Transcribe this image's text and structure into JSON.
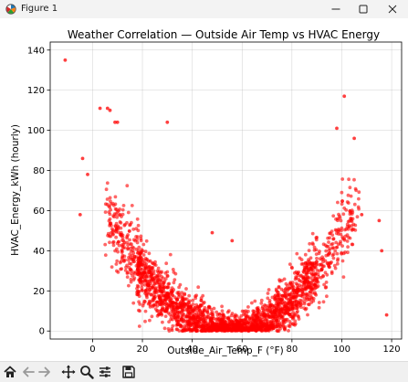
{
  "window": {
    "title": "Figure 1",
    "controls": [
      "minimize",
      "maximize",
      "close"
    ]
  },
  "toolbar": {
    "icons": [
      "home-icon",
      "back-arrow-icon",
      "forward-arrow-icon",
      "pan-icon",
      "zoom-icon",
      "configure-subplots-icon",
      "save-icon"
    ]
  },
  "chart_data": {
    "type": "scatter",
    "title": "Weather Correlation — Outside Air Temp vs HVAC Energy",
    "xlabel": "Outside_Air_Temp_F (°F)",
    "ylabel": "HVAC_Energy_kWh (hourly)",
    "xlim": [
      -17,
      124
    ],
    "ylim": [
      -4,
      144
    ],
    "xticks": [
      0,
      20,
      40,
      60,
      80,
      100,
      120
    ],
    "yticks": [
      0,
      20,
      40,
      60,
      80,
      100,
      120,
      140
    ],
    "grid": true,
    "color": "#ff0000",
    "n_points": 8760,
    "model": "U-shaped: energy ≈ 0.024·(T−55)² + noise, minimum near 55 °F",
    "highlight_points": [
      {
        "x": -11,
        "y": 135
      },
      {
        "x": 3,
        "y": 111
      },
      {
        "x": 6,
        "y": 111
      },
      {
        "x": 7,
        "y": 110
      },
      {
        "x": -4,
        "y": 86
      },
      {
        "x": -2,
        "y": 78
      },
      {
        "x": -5,
        "y": 58
      },
      {
        "x": 9,
        "y": 104
      },
      {
        "x": 10,
        "y": 104
      },
      {
        "x": 30,
        "y": 104
      },
      {
        "x": 48,
        "y": 49
      },
      {
        "x": 56,
        "y": 45
      },
      {
        "x": 101,
        "y": 117
      },
      {
        "x": 98,
        "y": 101
      },
      {
        "x": 105,
        "y": 96
      },
      {
        "x": 115,
        "y": 55
      },
      {
        "x": 116,
        "y": 40
      },
      {
        "x": 118,
        "y": 8
      },
      {
        "x": 108,
        "y": 58
      }
    ]
  }
}
